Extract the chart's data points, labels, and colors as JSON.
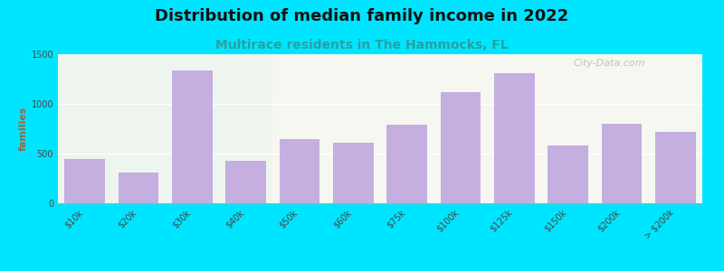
{
  "title": "Distribution of median family income in 2022",
  "subtitle": "Multirace residents in The Hammocks, FL",
  "ylabel": "families",
  "categories": [
    "$10k",
    "$20k",
    "$30k",
    "$40k",
    "$50k",
    "$60k",
    "$75k",
    "$100k",
    "$125k",
    "$150k",
    "$200k",
    "> $200k"
  ],
  "values": [
    450,
    310,
    1340,
    430,
    650,
    610,
    790,
    1120,
    1310,
    580,
    800,
    720
  ],
  "bar_color": "#c5aee0",
  "background_color": "#00e5ff",
  "plot_bg_color_left": "#eef5ee",
  "plot_bg_color_right": "#f7f7f2",
  "title_fontsize": 13,
  "subtitle_fontsize": 10,
  "ylabel_fontsize": 8,
  "tick_fontsize": 7,
  "ylim": [
    0,
    1500
  ],
  "yticks": [
    0,
    500,
    1000,
    1500
  ],
  "watermark": "City-Data.com",
  "subtitle_color": "#2aa0a0",
  "ylabel_color": "#996644",
  "title_color": "#111111",
  "bg_split": 3.5
}
